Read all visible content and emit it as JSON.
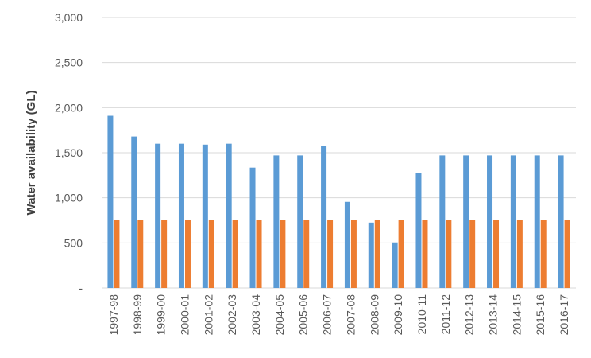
{
  "chart_data": {
    "type": "bar",
    "title": "",
    "xlabel": "",
    "ylabel": "Water availability (GL)",
    "ylim": [
      0,
      3000
    ],
    "yticks": [
      0,
      500,
      1000,
      1500,
      2000,
      2500,
      3000
    ],
    "ytick_labels": [
      "-",
      "500",
      "1,000",
      "1,500",
      "2,000",
      "2,500",
      "3,000"
    ],
    "grid": true,
    "legend": "none",
    "categories": [
      "1997-98",
      "1998-99",
      "1999-00",
      "2000-01",
      "2001-02",
      "2002-03",
      "2003-04",
      "2004-05",
      "2005-06",
      "2006-07",
      "2007-08",
      "2008-09",
      "2009-10",
      "2010-11",
      "2011-12",
      "2012-13",
      "2013-14",
      "2014-15",
      "2015-16",
      "2016-17"
    ],
    "series": [
      {
        "color": "#5b9bd5",
        "values": [
          1910,
          1680,
          1600,
          1600,
          1590,
          1600,
          1335,
          1470,
          1470,
          1575,
          955,
          725,
          505,
          1275,
          1470,
          1470,
          1470,
          1470,
          1470,
          1470
        ]
      },
      {
        "color": "#ed7d31",
        "values": [
          750,
          750,
          750,
          750,
          750,
          750,
          750,
          750,
          750,
          750,
          750,
          750,
          750,
          750,
          750,
          750,
          750,
          750,
          750,
          750
        ]
      }
    ]
  }
}
